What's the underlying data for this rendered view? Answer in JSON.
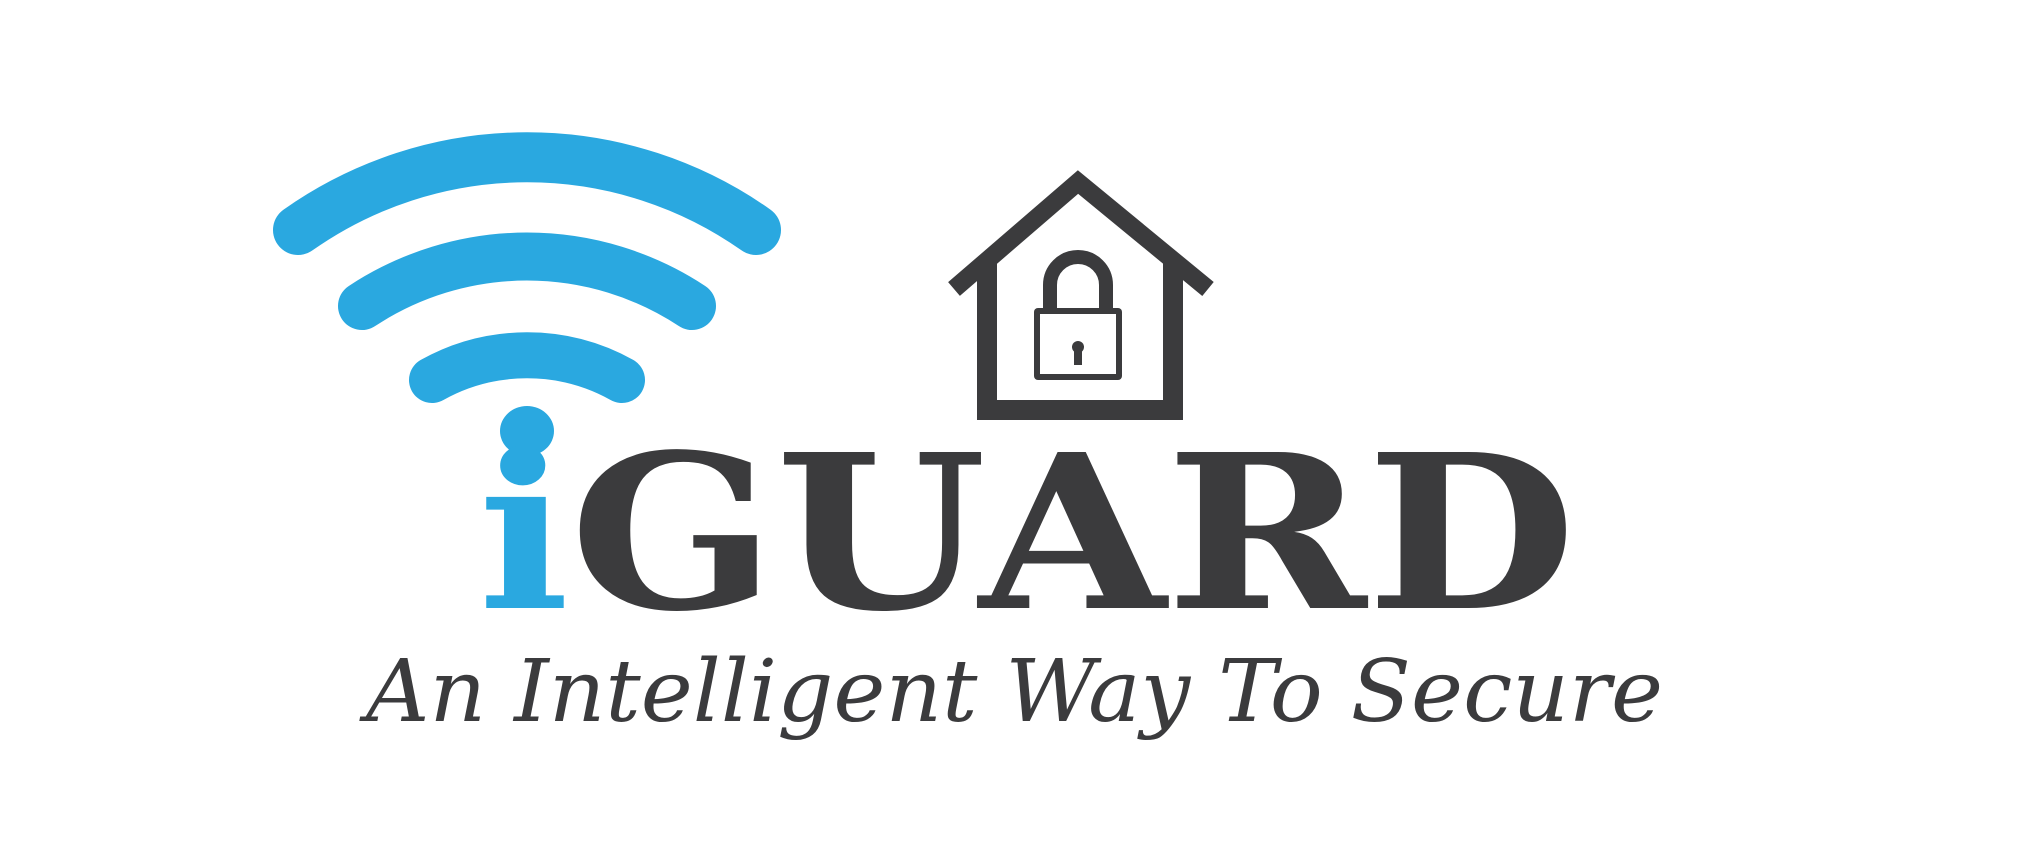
{
  "logo": {
    "brand_prefix": "i",
    "brand_main": "GUARD",
    "tagline": "An Intelligent Way To Secure",
    "icons": {
      "signal": "wifi-signal-icon",
      "home_lock": "house-lock-icon"
    },
    "colors": {
      "accent_blue": "#2aa8e0",
      "dark_gray": "#3b3b3d",
      "background": "#ffffff"
    }
  }
}
